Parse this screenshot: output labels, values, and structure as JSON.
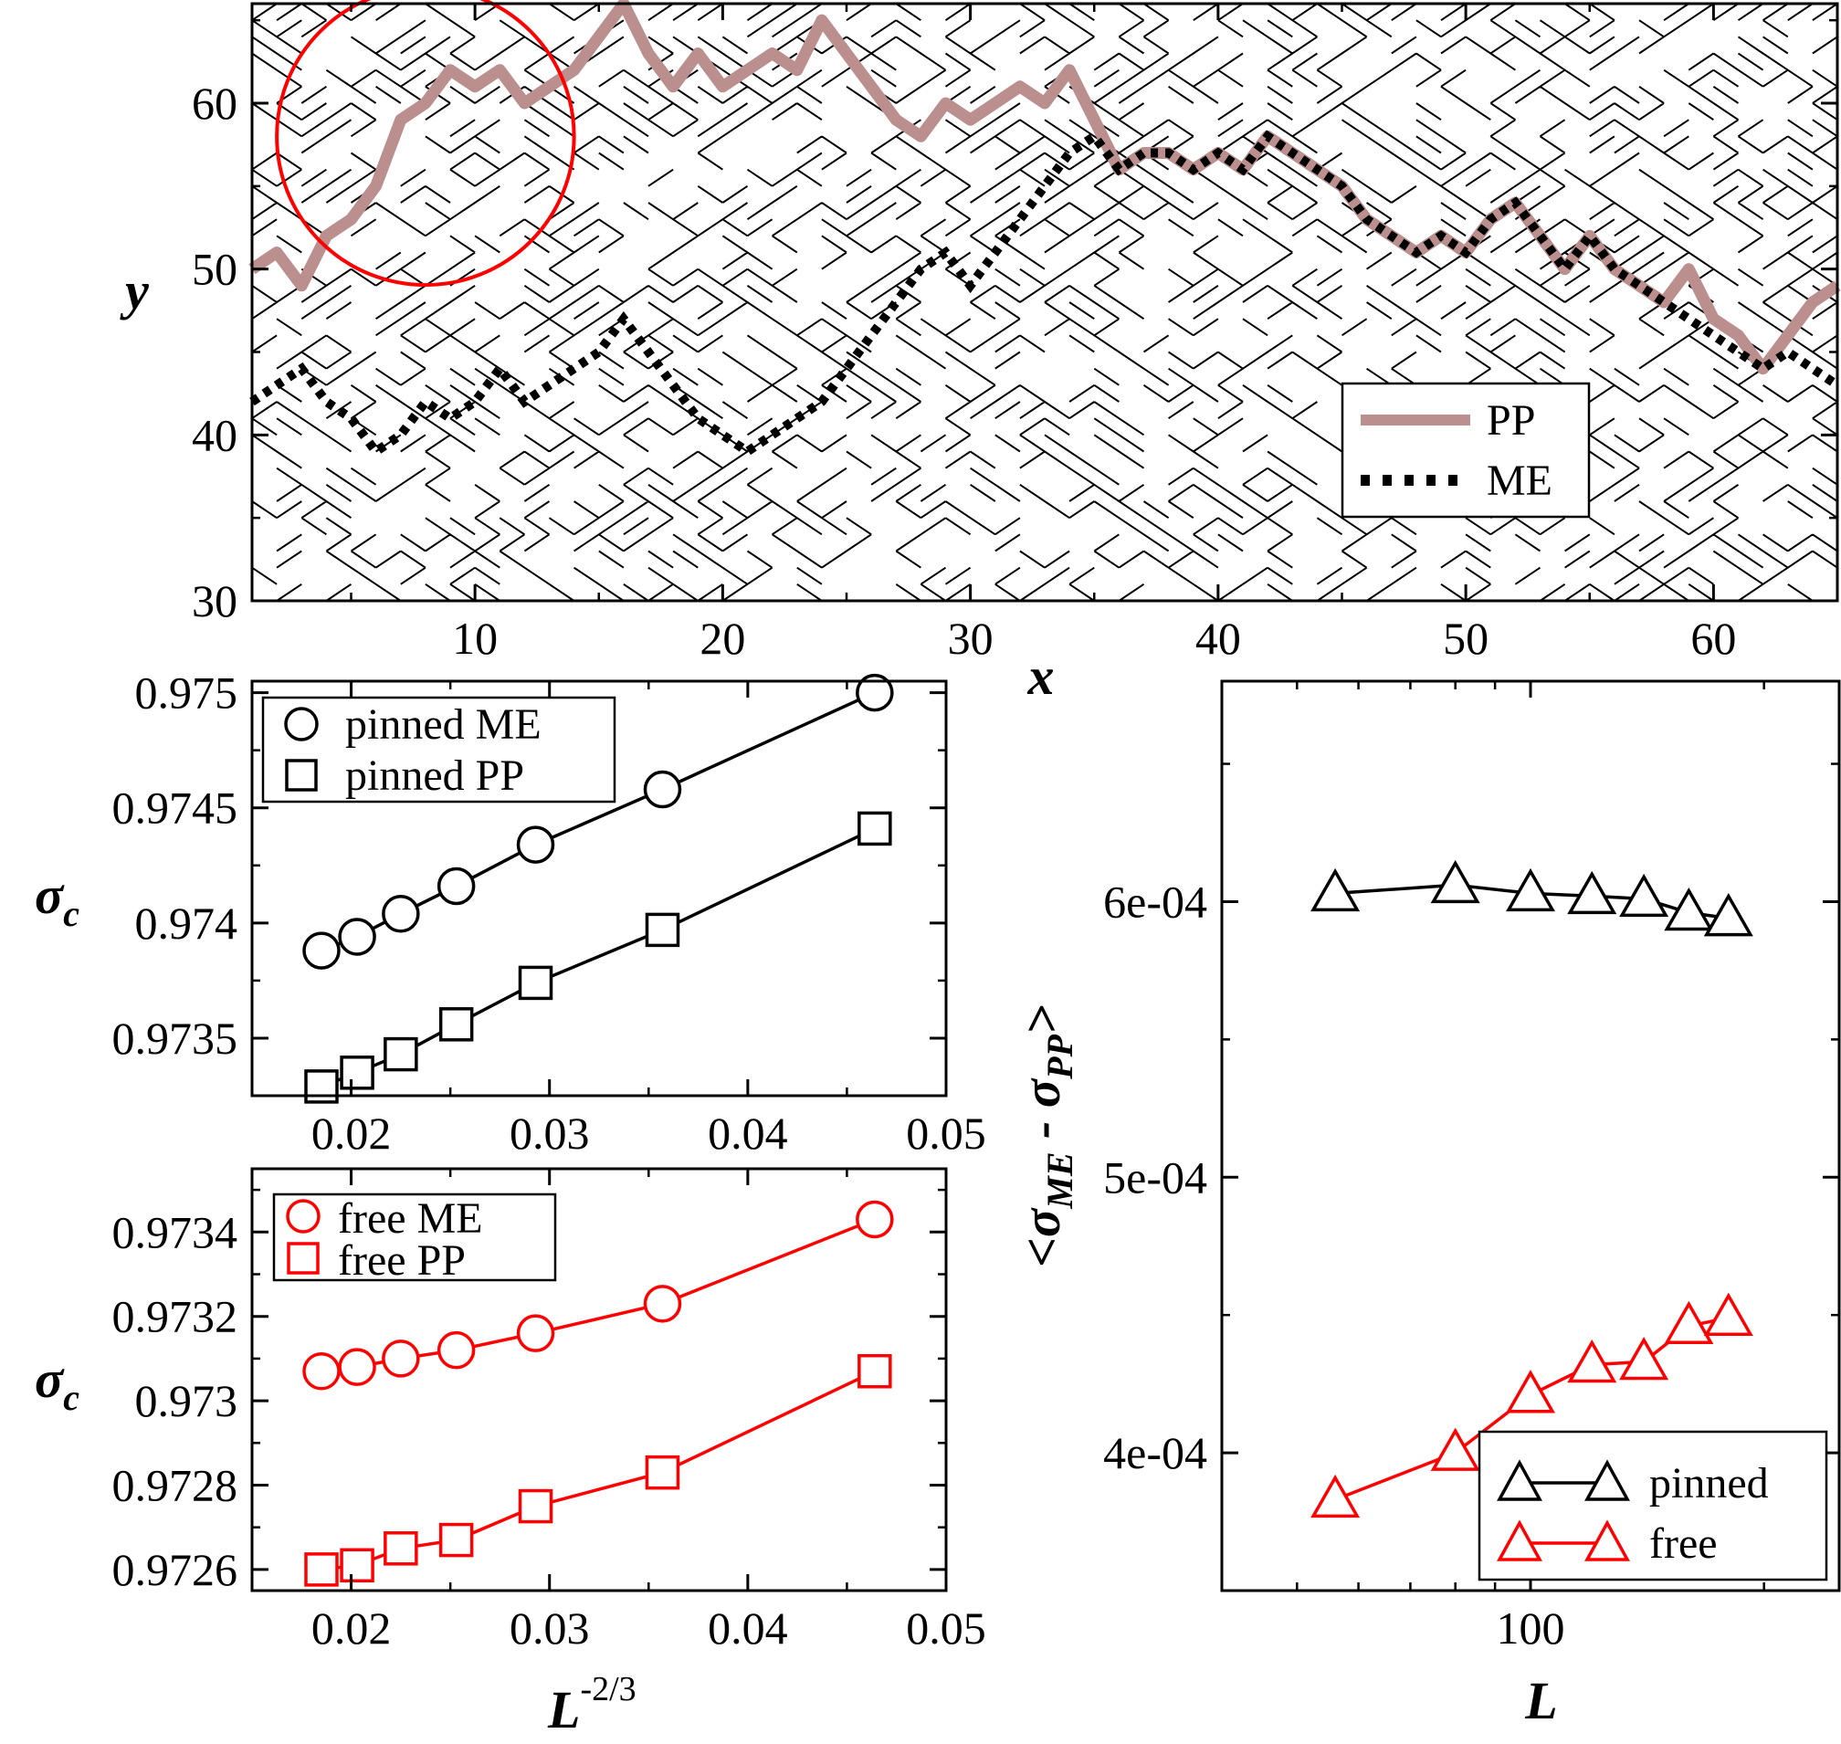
{
  "panel_top": {
    "xlabel": "x",
    "ylabel": "y",
    "legend": [
      "PP",
      "ME"
    ]
  },
  "panel_pinned": {
    "ylabel_sym": "σ",
    "ylabel_sub": "c",
    "legend": [
      "pinned ME",
      "pinned PP"
    ]
  },
  "panel_free": {
    "ylabel_sym": "σ",
    "ylabel_sub": "c",
    "xlabel_base": "L",
    "xlabel_exp": "-2/3",
    "legend": [
      "free ME",
      "free PP"
    ]
  },
  "panel_diff": {
    "xlabel": "L",
    "ylabel_open": "<",
    "ylabel_sym1": "σ",
    "ylabel_sub1": "ME",
    "ylabel_mid": " - ",
    "ylabel_sym2": "σ",
    "ylabel_sub2": "PP",
    "ylabel_close": ">",
    "legend": [
      "pinned",
      "free"
    ]
  },
  "colors": {
    "pp_path": "#bc8f8f",
    "me_path": "#000000",
    "pinned": "#000000",
    "free": "#ff0000",
    "circle_highlight": "#ff0000"
  },
  "chart_data": [
    {
      "type": "line",
      "id": "paths",
      "xlabel": "x",
      "ylabel": "y",
      "xlim": [
        1,
        65
      ],
      "ylim": [
        30,
        66
      ],
      "xticks": [
        10,
        20,
        30,
        40,
        50,
        60
      ],
      "yticks": [
        30,
        40,
        50,
        60
      ],
      "xtick_labels": [
        "10",
        "20",
        "30",
        "40",
        "50",
        "60"
      ],
      "ytick_labels": [
        "30",
        "40",
        "50",
        "60"
      ],
      "background": "random lattice of diagonal bond segments",
      "highlight_circle": {
        "cx": 8,
        "cy": 58,
        "r": 6
      },
      "series": [
        {
          "name": "PP",
          "x": [
            1,
            2,
            3,
            4,
            5,
            6,
            7,
            8,
            9,
            10,
            11,
            12,
            13,
            14,
            15,
            16,
            17,
            18,
            19,
            20,
            21,
            22,
            23,
            24,
            25,
            26,
            27,
            28,
            29,
            30,
            31,
            32,
            33,
            34,
            35,
            36,
            37,
            38,
            39,
            40,
            41,
            42,
            43,
            44,
            45,
            46,
            47,
            48,
            49,
            50,
            51,
            52,
            53,
            54,
            55,
            56,
            57,
            58,
            59,
            60,
            61,
            62,
            63,
            64,
            65
          ],
          "y": [
            50,
            51,
            49,
            52,
            53,
            55,
            59,
            60,
            62,
            61,
            62,
            60,
            61,
            62,
            64,
            66,
            63,
            61,
            63,
            61,
            62,
            63,
            62,
            65,
            63,
            61,
            59,
            58,
            60,
            59,
            60,
            61,
            60,
            62,
            59,
            56,
            57,
            57,
            56,
            57,
            56,
            58,
            57,
            56,
            55,
            53,
            52,
            51,
            52,
            51,
            53,
            54,
            52,
            50,
            52,
            50,
            49,
            48,
            50,
            47,
            46,
            44,
            46,
            48,
            49
          ]
        },
        {
          "name": "ME",
          "x": [
            1,
            2,
            3,
            4,
            5,
            6,
            7,
            8,
            9,
            10,
            11,
            12,
            13,
            14,
            15,
            16,
            17,
            18,
            19,
            20,
            21,
            22,
            23,
            24,
            25,
            26,
            27,
            28,
            29,
            30,
            31,
            32,
            33,
            34,
            35,
            36,
            37,
            38,
            39,
            40,
            41,
            42,
            43,
            44,
            45,
            46,
            47,
            48,
            49,
            50,
            51,
            52,
            53,
            54,
            55,
            56,
            57,
            58,
            59,
            60,
            61,
            62,
            63,
            64,
            65
          ],
          "y": [
            42,
            43,
            44,
            42,
            41,
            39,
            40,
            42,
            41,
            42,
            44,
            42,
            43,
            44,
            45,
            47,
            45,
            43,
            41,
            40,
            39,
            40,
            41,
            42,
            44,
            46,
            48,
            50,
            51,
            49,
            51,
            53,
            55,
            57,
            58,
            56,
            57,
            57,
            56,
            57,
            56,
            58,
            57,
            56,
            55,
            53,
            52,
            51,
            52,
            51,
            53,
            54,
            52,
            50,
            52,
            50,
            49,
            48,
            47,
            46,
            45,
            44,
            45,
            44,
            43
          ]
        }
      ]
    },
    {
      "type": "line",
      "id": "pinned",
      "ylabel": "σc",
      "xlim": [
        0.015,
        0.05
      ],
      "ylim": [
        0.97325,
        0.97505
      ],
      "xticks": [
        0.02,
        0.03,
        0.04,
        0.05
      ],
      "yticks": [
        0.9735,
        0.974,
        0.9745,
        0.975
      ],
      "xtick_labels": [
        "0.02",
        "0.03",
        "0.04",
        "0.05"
      ],
      "ytick_labels": [
        "0.9735",
        "0.974",
        "0.9745",
        "0.975"
      ],
      "series": [
        {
          "name": "pinned ME",
          "marker": "circle",
          "x": [
            0.0185,
            0.0203,
            0.0225,
            0.0253,
            0.0293,
            0.0357,
            0.0464
          ],
          "y": [
            0.97388,
            0.97394,
            0.97404,
            0.97416,
            0.97434,
            0.97458,
            0.975
          ]
        },
        {
          "name": "pinned PP",
          "marker": "square",
          "x": [
            0.0185,
            0.0203,
            0.0225,
            0.0253,
            0.0293,
            0.0357,
            0.0464
          ],
          "y": [
            0.97329,
            0.97335,
            0.97343,
            0.97356,
            0.97374,
            0.97397,
            0.97441
          ]
        }
      ]
    },
    {
      "type": "line",
      "id": "free",
      "ylabel": "σc",
      "xlabel": "L^-2/3",
      "xlim": [
        0.015,
        0.05
      ],
      "ylim": [
        0.97255,
        0.97355
      ],
      "xticks": [
        0.02,
        0.03,
        0.04,
        0.05
      ],
      "yticks": [
        0.9726,
        0.9728,
        0.973,
        0.9732,
        0.9734
      ],
      "xtick_labels": [
        "0.02",
        "0.03",
        "0.04",
        "0.05"
      ],
      "ytick_labels": [
        "0.9726",
        "0.9728",
        "0.973",
        "0.9732",
        "0.9734"
      ],
      "series": [
        {
          "name": "free ME",
          "marker": "circle",
          "x": [
            0.0185,
            0.0203,
            0.0225,
            0.0253,
            0.0293,
            0.0357,
            0.0464
          ],
          "y": [
            0.97307,
            0.97308,
            0.9731,
            0.97312,
            0.97316,
            0.97323,
            0.97343
          ]
        },
        {
          "name": "free PP",
          "marker": "square",
          "x": [
            0.0185,
            0.0203,
            0.0225,
            0.0253,
            0.0293,
            0.0357,
            0.0464
          ],
          "y": [
            0.9726,
            0.97261,
            0.97265,
            0.97267,
            0.97275,
            0.97283,
            0.97307
          ]
        }
      ]
    },
    {
      "type": "line",
      "id": "difference",
      "xlabel": "L",
      "ylabel": "<σME - σPP>",
      "xscale": "log",
      "xlim": [
        40,
        250
      ],
      "ylim": [
        0.00035,
        0.00068
      ],
      "xticks": [
        100
      ],
      "yticks": [
        0.0004,
        0.0005,
        0.0006
      ],
      "xtick_labels": [
        "100"
      ],
      "ytick_labels": [
        "4e-04",
        "5e-04",
        "6e-04"
      ],
      "series": [
        {
          "name": "pinned",
          "marker": "triangle",
          "x": [
            56,
            80,
            100,
            120,
            140,
            160,
            180
          ],
          "y": [
            0.000603,
            0.000606,
            0.000603,
            0.000602,
            0.000601,
            0.000596,
            0.000594
          ]
        },
        {
          "name": "free",
          "marker": "triangle",
          "x": [
            56,
            80,
            100,
            120,
            140,
            160,
            180
          ],
          "y": [
            0.000383,
            0.0004,
            0.000421,
            0.000432,
            0.000433,
            0.000446,
            0.000449
          ]
        }
      ]
    }
  ]
}
